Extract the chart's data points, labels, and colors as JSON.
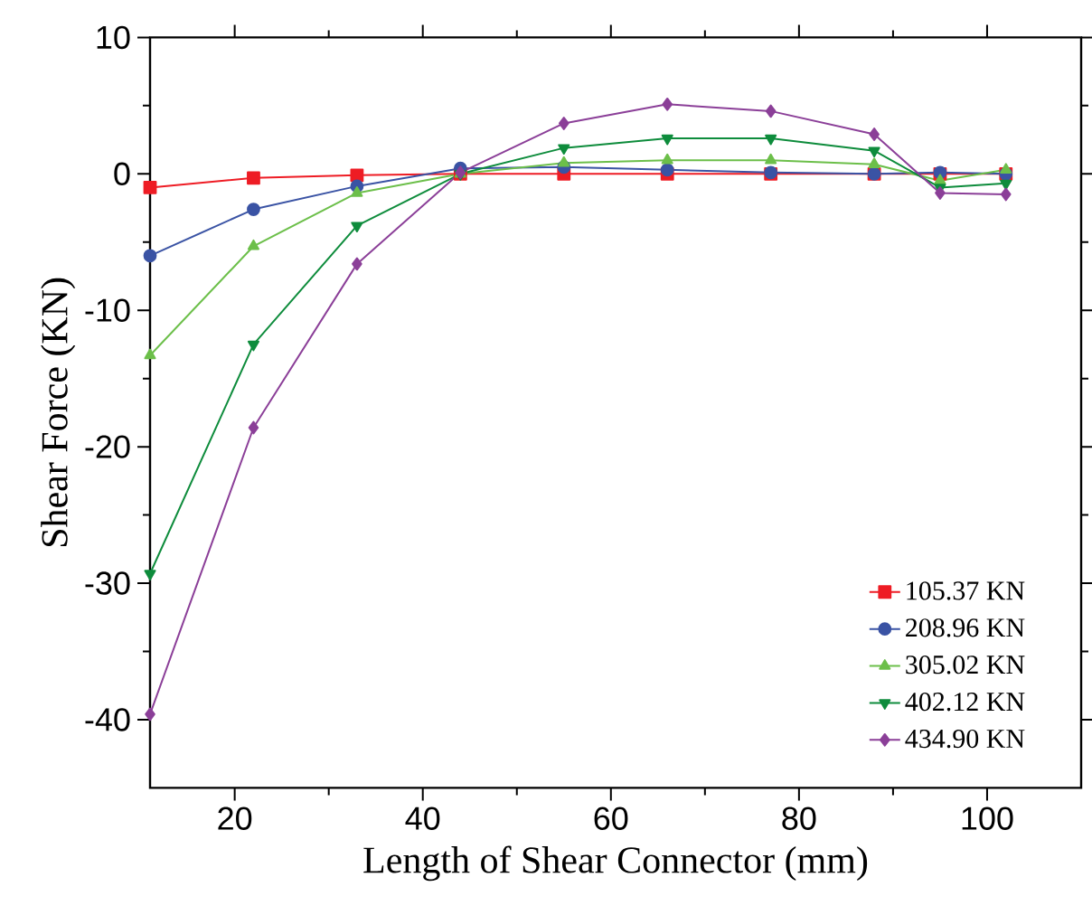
{
  "chart_data": {
    "type": "line",
    "xlabel": "Length of Shear Connector (mm)",
    "ylabel": "Shear Force (KN)",
    "x": [
      11,
      22,
      33,
      44,
      55,
      66,
      77,
      88,
      95,
      102
    ],
    "xlim": [
      11,
      110
    ],
    "xticks": [
      20,
      40,
      60,
      80,
      100
    ],
    "ylim": [
      -45,
      10
    ],
    "yticks": [
      -40,
      -30,
      -20,
      -10,
      0,
      10
    ],
    "legend": "bottom right",
    "grid": false,
    "line_style": "solid",
    "series": [
      {
        "name": "105.37 KN",
        "color": "#ee1c24",
        "marker": "square",
        "values": [
          -1.0,
          -0.3,
          -0.1,
          0,
          0,
          0,
          0,
          0,
          0,
          0
        ]
      },
      {
        "name": "208.96 KN",
        "color": "#3a53a4",
        "marker": "circle",
        "values": [
          -6.0,
          -2.6,
          -0.9,
          0.4,
          0.5,
          0.3,
          0.1,
          0,
          0.1,
          0
        ]
      },
      {
        "name": "305.02 KN",
        "color": "#6cbf4a",
        "marker": "triangle",
        "values": [
          -13.3,
          -5.3,
          -1.4,
          0,
          0.8,
          1.0,
          1.0,
          0.7,
          -0.5,
          0.3
        ]
      },
      {
        "name": "402.12 KN",
        "color": "#0e8c3c",
        "marker": "triangle-down",
        "values": [
          -29.3,
          -12.5,
          -3.8,
          0,
          1.9,
          2.6,
          2.6,
          1.7,
          -1.0,
          -0.7
        ]
      },
      {
        "name": "434.90 KN",
        "color": "#8b3f98",
        "marker": "diamond",
        "values": [
          -39.6,
          -18.6,
          -6.6,
          0.1,
          3.7,
          5.1,
          4.6,
          2.9,
          -1.4,
          -1.5
        ]
      }
    ]
  }
}
